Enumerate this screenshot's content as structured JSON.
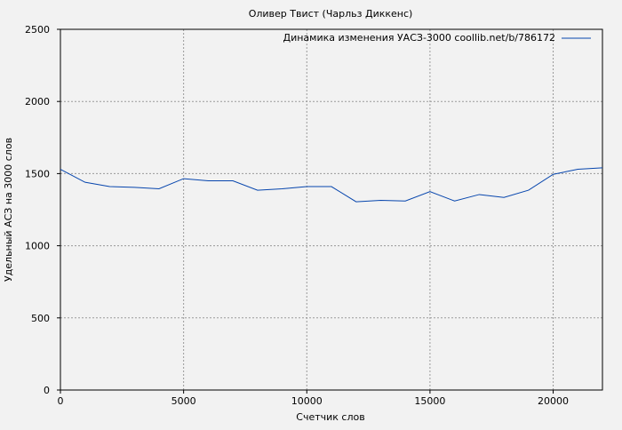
{
  "chart_data": {
    "type": "line",
    "title": "Оливер Твист (Чарльз Диккенс)",
    "xlabel": "Счетчик слов",
    "ylabel": "Удельный АСЗ на 3000 слов",
    "xlim": [
      0,
      22000
    ],
    "ylim": [
      0,
      2500
    ],
    "xticks": [
      0,
      5000,
      10000,
      15000,
      20000
    ],
    "yticks": [
      0,
      500,
      1000,
      1500,
      2000,
      2500
    ],
    "grid": true,
    "legend_position": "top-right",
    "series": [
      {
        "name": "Динамика изменения УАСЗ-3000 coollib.net/b/786172",
        "color": "#0645ad",
        "x": [
          0,
          1000,
          2000,
          3000,
          4000,
          5000,
          6000,
          7000,
          8000,
          9000,
          10000,
          11000,
          12000,
          13000,
          14000,
          15000,
          16000,
          17000,
          18000,
          19000,
          20000,
          21000,
          22000
        ],
        "y": [
          1530,
          1440,
          1410,
          1405,
          1395,
          1465,
          1450,
          1450,
          1385,
          1395,
          1410,
          1410,
          1305,
          1315,
          1310,
          1375,
          1310,
          1355,
          1335,
          1385,
          1495,
          1530,
          1540
        ]
      }
    ]
  }
}
